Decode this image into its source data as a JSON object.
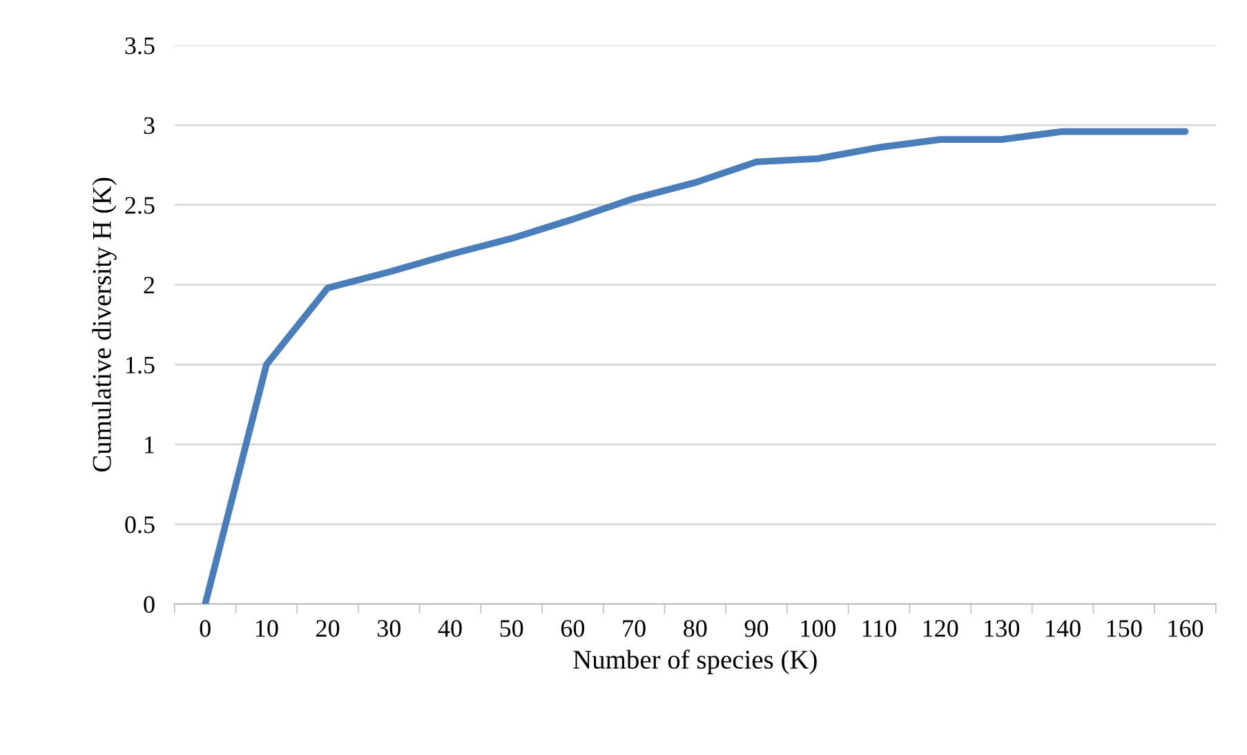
{
  "chart_data": {
    "type": "line",
    "xlabel": "Number of species (K)",
    "ylabel": "Cumulative diversity H (K)",
    "categories": [
      "0",
      "10",
      "20",
      "30",
      "40",
      "50",
      "60",
      "70",
      "80",
      "90",
      "100",
      "110",
      "120",
      "130",
      "140",
      "150",
      "160"
    ],
    "series": [
      {
        "color": "#4a7ebb",
        "values": [
          0,
          1.5,
          1.98,
          2.08,
          2.19,
          2.29,
          2.41,
          2.54,
          2.64,
          2.77,
          2.79,
          2.86,
          2.91,
          2.91,
          2.96,
          2.96,
          2.96
        ]
      }
    ],
    "ylim": [
      0,
      3.5
    ],
    "yticks": [
      0,
      0.5,
      1,
      1.5,
      2,
      2.5,
      3,
      3.5
    ],
    "grid": "y",
    "legend": false,
    "marker": "none",
    "line_style": "solid"
  }
}
